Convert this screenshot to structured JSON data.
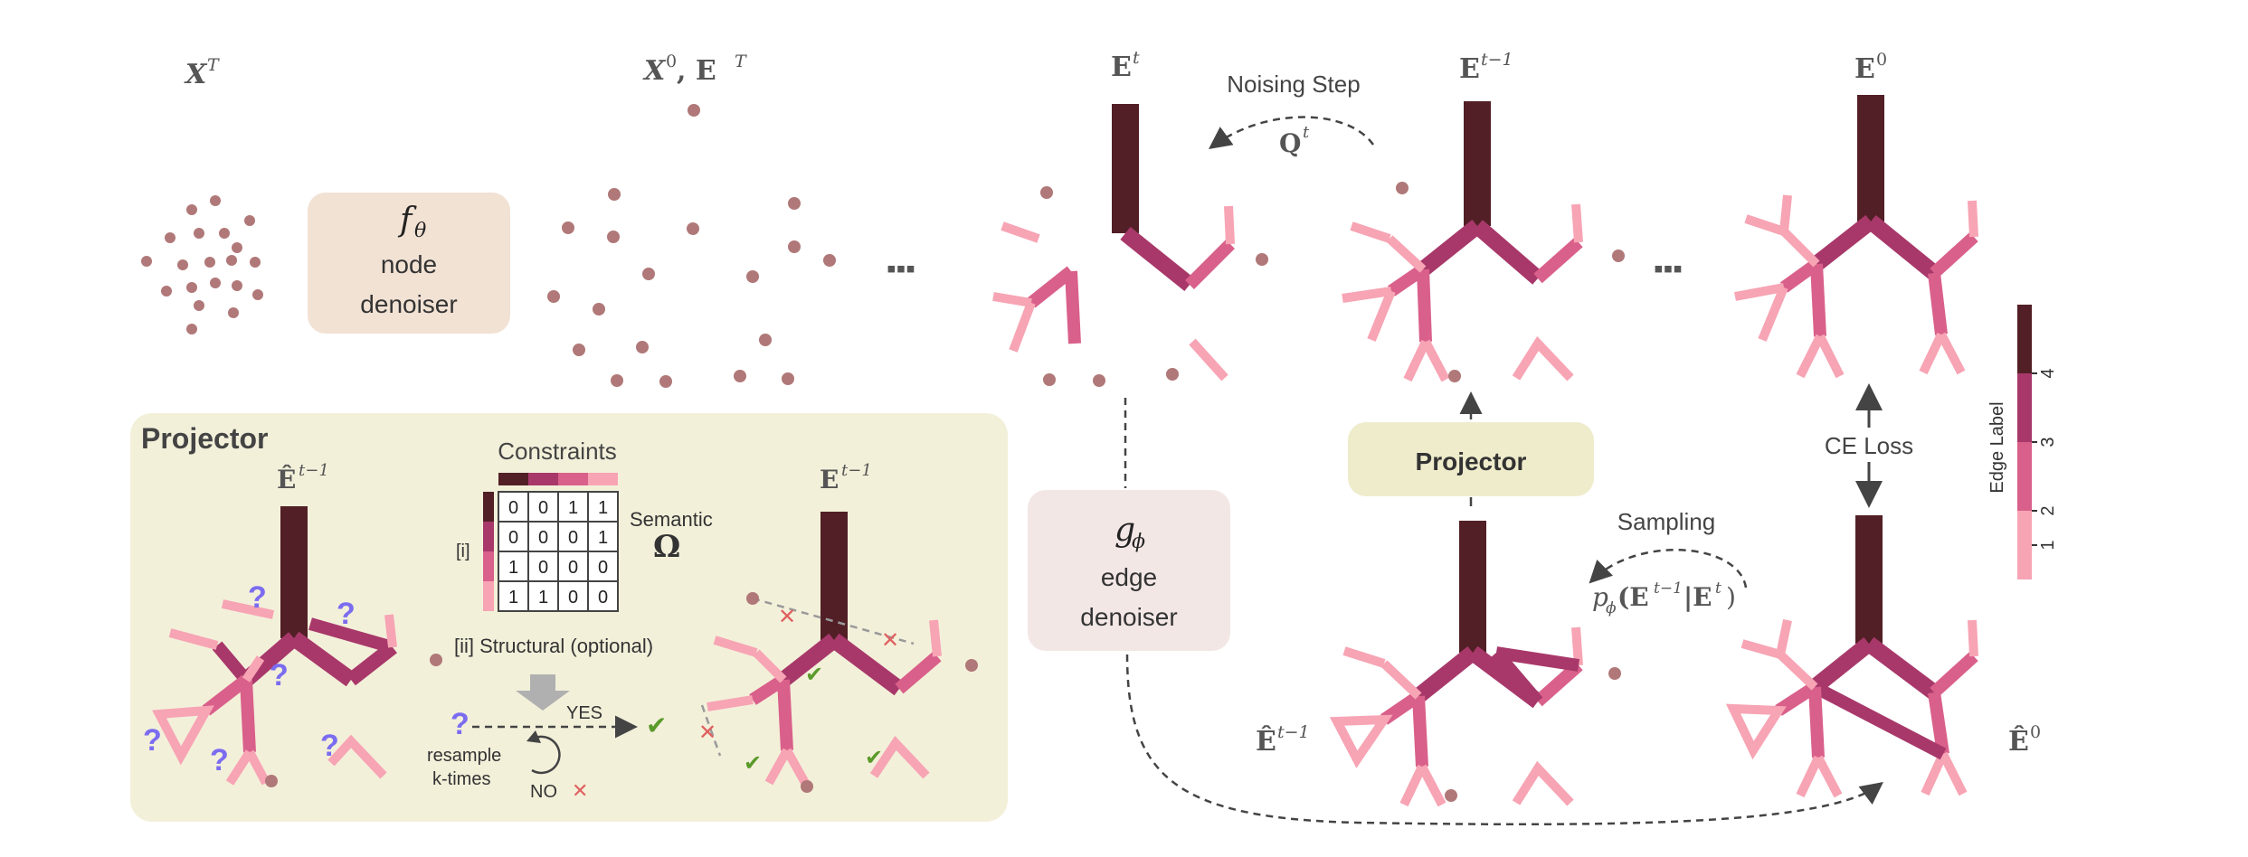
{
  "colors": {
    "edge_label_4": "#521f26",
    "edge_label_3": "#a8386a",
    "edge_label_2": "#d9608a",
    "edge_label_1": "#f7a4b4",
    "node": "#b07878",
    "node_denoiser_bg": "#f2e2d4",
    "edge_denoiser_bg": "#f3e7e6",
    "projector_bg": "#f3f0da",
    "projector_button_bg": "#efeccc"
  },
  "labels": {
    "xT": "X",
    "xT_sup": "T",
    "x0_eT": "X",
    "x0_sup": "0",
    "x0_comma": ", E",
    "eT_sup": "T",
    "et": "E",
    "et_sup": "t",
    "et1": "E",
    "et1_sup": "t−1",
    "e0": "E",
    "e0_sup": "0",
    "ehat_t1": "Ê",
    "ehat_t1_sup": "t−1",
    "ehat_0": "Ê",
    "ehat_0_sup": "0",
    "ellipsis1": "▪▪▪",
    "ellipsis2": "▪▪▪"
  },
  "node_denoiser": {
    "symbol": "f",
    "symbol_sub": "θ",
    "line1": "node",
    "line2": "denoiser"
  },
  "edge_denoiser": {
    "symbol": "g",
    "symbol_sub": "ϕ",
    "line1": "edge",
    "line2": "denoiser"
  },
  "noising": {
    "title": "Noising Step",
    "symbol": "Q",
    "symbol_sup": "t"
  },
  "sampling": {
    "title": "Sampling",
    "formula": "p",
    "formula_sub": "ϕ",
    "formula_rest": "(E",
    "formula_sup": "t−1",
    "formula_end": "|E",
    "formula_sup2": "t",
    "formula_close": ")"
  },
  "projector_button": {
    "label": "Projector"
  },
  "ce_loss": {
    "label": "CE Loss"
  },
  "projector_panel": {
    "title": "Projector",
    "ehat_label": "Ê",
    "ehat_sup": "t−1",
    "e_label": "E",
    "e_sup": "t−1",
    "constraints_title": "Constraints",
    "semantic_label": "Semantic",
    "omega": "Ω",
    "i_label": "[i]",
    "ii_label": "[ii] Structural (optional)",
    "yes": "YES",
    "no": "NO",
    "resample_line1": "resample",
    "resample_line2": "k-times",
    "qmark": "?",
    "cross": "✕",
    "check": "✔",
    "matrix": [
      [
        0,
        0,
        1,
        1
      ],
      [
        0,
        0,
        0,
        1
      ],
      [
        1,
        0,
        0,
        0
      ],
      [
        1,
        1,
        0,
        0
      ]
    ]
  },
  "legend": {
    "title": "Edge Label",
    "ticks": [
      "4",
      "3",
      "2",
      "1"
    ]
  }
}
